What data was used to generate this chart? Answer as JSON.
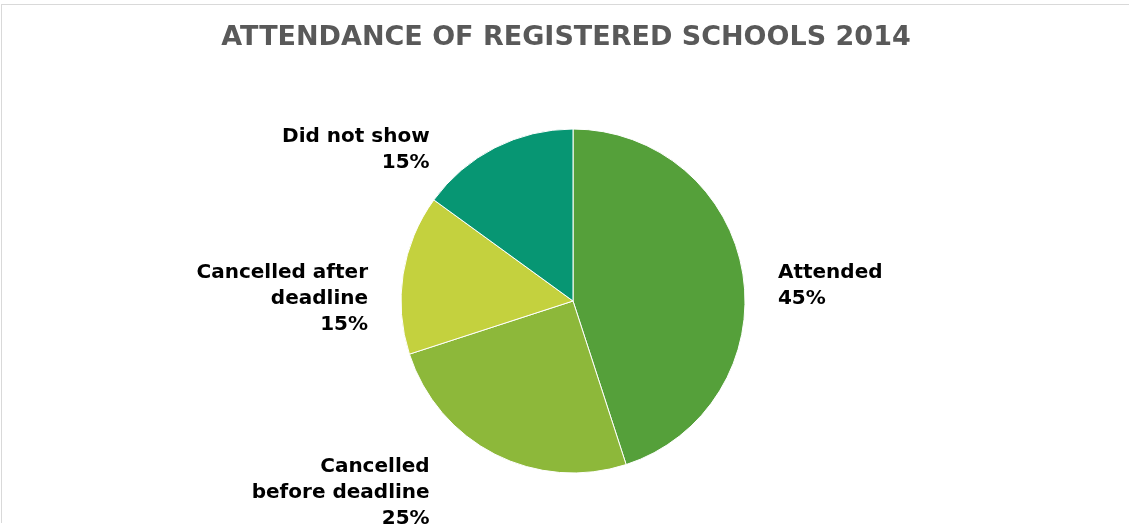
{
  "chart_data": {
    "type": "pie",
    "title": "ATTENDANCE OF REGISTERED SCHOOLS 2014",
    "categories": [
      "Attended",
      "Cancelled before deadline",
      "Cancelled after deadline",
      "Did not show"
    ],
    "values": [
      45,
      25,
      15,
      15
    ],
    "colors": [
      "#55a03a",
      "#8db83a",
      "#c4d13e",
      "#079673"
    ],
    "value_labels": [
      "45%",
      "25%",
      "15%",
      "15%"
    ]
  }
}
